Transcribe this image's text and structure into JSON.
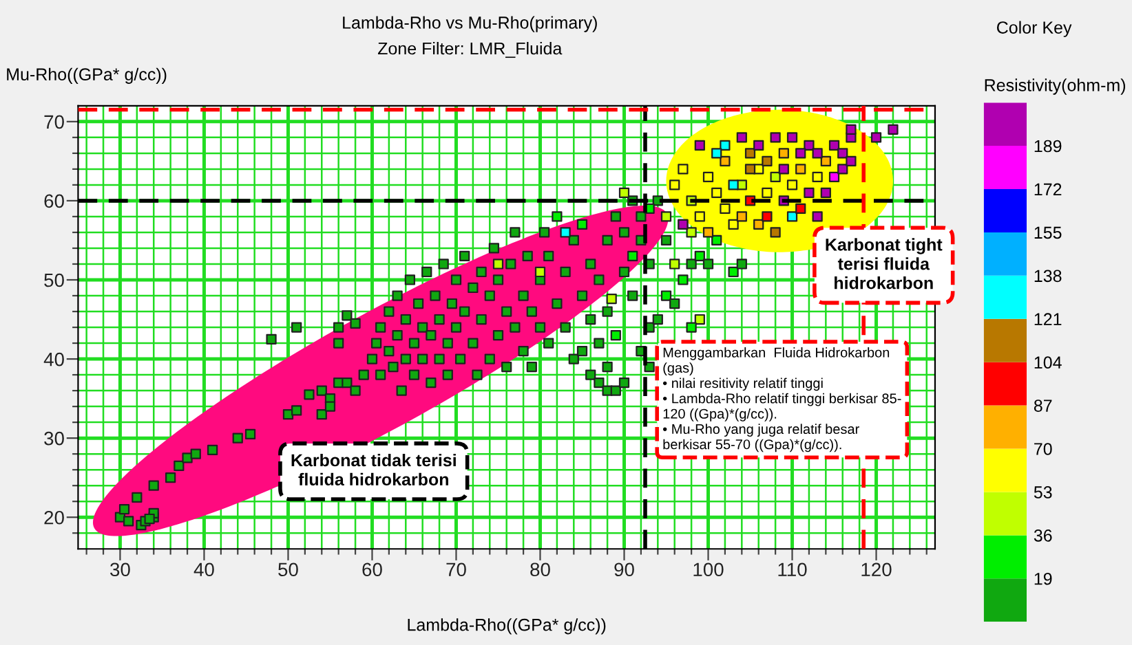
{
  "chart_data": {
    "type": "scatter",
    "title": "Lambda-Rho vs Mu-Rho(primary)",
    "subtitle": "Zone Filter: LMR_Fluida",
    "xlabel": "Lambda-Rho((GPa* g/cc))",
    "ylabel": "Mu-Rho((GPa* g/cc))",
    "legend_title": "Color Key",
    "clabel": "Resistivity(ohm-m)",
    "xlim": [
      25,
      127
    ],
    "ylim": [
      16,
      72
    ],
    "xticks": [
      {
        "value": 26,
        "label": null
      },
      {
        "value": 28,
        "label": null
      },
      30,
      {
        "value": 32,
        "label": null
      },
      {
        "value": 34,
        "label": null
      },
      {
        "value": 36,
        "label": null
      },
      {
        "value": 38,
        "label": null
      },
      40,
      {
        "value": 42,
        "label": null
      },
      {
        "value": 44,
        "label": null
      },
      {
        "value": 46,
        "label": null
      },
      {
        "value": 48,
        "label": null
      },
      50,
      {
        "value": 52,
        "label": null
      },
      {
        "value": 54,
        "label": null
      },
      {
        "value": 56,
        "label": null
      },
      {
        "value": 58,
        "label": null
      },
      60,
      {
        "value": 62,
        "label": null
      },
      {
        "value": 64,
        "label": null
      },
      {
        "value": 66,
        "label": null
      },
      {
        "value": 68,
        "label": null
      },
      70,
      {
        "value": 72,
        "label": null
      },
      {
        "value": 74,
        "label": null
      },
      {
        "value": 76,
        "label": null
      },
      {
        "value": 78,
        "label": null
      },
      80,
      {
        "value": 82,
        "label": null
      },
      {
        "value": 84,
        "label": null
      },
      {
        "value": 86,
        "label": null
      },
      {
        "value": 88,
        "label": null
      },
      90,
      {
        "value": 92,
        "label": null
      },
      {
        "value": 94,
        "label": null
      },
      {
        "value": 96,
        "label": null
      },
      {
        "value": 98,
        "label": null
      },
      100,
      {
        "value": 102,
        "label": null
      },
      {
        "value": 104,
        "label": null
      },
      {
        "value": 106,
        "label": null
      },
      {
        "value": 108,
        "label": null
      },
      110,
      {
        "value": 112,
        "label": null
      },
      {
        "value": 114,
        "label": null
      },
      {
        "value": 116,
        "label": null
      },
      {
        "value": 118,
        "label": null
      },
      120,
      {
        "value": 122,
        "label": null
      },
      {
        "value": 124,
        "label": null
      },
      {
        "value": 126,
        "label": null
      }
    ],
    "yticks": [
      {
        "value": 18,
        "label": null
      },
      20,
      {
        "value": 22,
        "label": null
      },
      {
        "value": 24,
        "label": null
      },
      {
        "value": 26,
        "label": null
      },
      {
        "value": 28,
        "label": null
      },
      30,
      {
        "value": 32,
        "label": null
      },
      {
        "value": 34,
        "label": null
      },
      {
        "value": 36,
        "label": null
      },
      {
        "value": 38,
        "label": null
      },
      40,
      {
        "value": 42,
        "label": null
      },
      {
        "value": 44,
        "label": null
      },
      {
        "value": 46,
        "label": null
      },
      {
        "value": 48,
        "label": null
      },
      50,
      {
        "value": 52,
        "label": null
      },
      {
        "value": 54,
        "label": null
      },
      {
        "value": 56,
        "label": null
      },
      {
        "value": 58,
        "label": null
      },
      60,
      {
        "value": 62,
        "label": null
      },
      {
        "value": 64,
        "label": null
      },
      {
        "value": 66,
        "label": null
      },
      {
        "value": 68,
        "label": null
      },
      70
    ],
    "clim": [
      2,
      206
    ],
    "cticks": [
      19,
      36,
      53,
      70,
      87,
      104,
      121,
      138,
      155,
      172,
      189
    ],
    "grid": true,
    "marker": "square",
    "ref_lines": [
      {
        "axis": "y",
        "value": 60,
        "color": "#000000",
        "line_style": "dashed"
      },
      {
        "axis": "x",
        "value": 92.5,
        "color": "#000000",
        "line_style": "dashed"
      },
      {
        "axis": "y",
        "value": 71.5,
        "color": "#ff0000",
        "line_style": "dashed"
      },
      {
        "axis": "x",
        "value": 118.5,
        "color": "#ff0000",
        "line_style": "dashed"
      }
    ],
    "annotations": [
      "Karbonat tidak terisi\nfluida hidrokarbon",
      "Karbonat tight\nterisi fluida\nhidrokarbon",
      "Menggambarkan  Fluida Hidrokarbon\n(gas)\n• nilai resitivity relatif tinggi\n• Lambda-Rho relatif tinggi berkisar 85-\n120 ((Gpa)*(g/cc)).\n• Mu-Rho yang juga relatif besar\nberkisar 55-70 ((Gpa)*(g/cc))."
    ],
    "series": [
      {
        "x": [
          30,
          30.5,
          31,
          32.5,
          33,
          34,
          34,
          33.5,
          32,
          34,
          36,
          37,
          38,
          39,
          41,
          44,
          45.5,
          48,
          50,
          51,
          51,
          52.5,
          54,
          55,
          54,
          55,
          56,
          57,
          56,
          57,
          58,
          56,
          58,
          59,
          60,
          60.5,
          61,
          61,
          62,
          62,
          62.5,
          63,
          63,
          63.5,
          64,
          64,
          64.5,
          65,
          65,
          65.5,
          66,
          66,
          66.5,
          67,
          67,
          67.5,
          68,
          68,
          68.5,
          69,
          69,
          69.5,
          70,
          70,
          70.5,
          71,
          71,
          72,
          72,
          72.5,
          73,
          73,
          74,
          74,
          74.5,
          75,
          75,
          76,
          76,
          76.5,
          77,
          77,
          78,
          78,
          78.5,
          79,
          79,
          80,
          80,
          80.5,
          81,
          81,
          82,
          82,
          83,
          83,
          84,
          84,
          85,
          85,
          86,
          86,
          87,
          87,
          88,
          88,
          89,
          89,
          90,
          90,
          91,
          91,
          92,
          92,
          86,
          87,
          88,
          89,
          90,
          93,
          94,
          95,
          96,
          97,
          98,
          99,
          100,
          101,
          103,
          104,
          93,
          95,
          88,
          85,
          93,
          92,
          99,
          98,
          96,
          97,
          95,
          94,
          93,
          91,
          90,
          80,
          75,
          83,
          88.5,
          96,
          97,
          98,
          99,
          100,
          100,
          101,
          102,
          102,
          103,
          104,
          104,
          105,
          105,
          106,
          106,
          107,
          107,
          108,
          108,
          109,
          109,
          110,
          110,
          111,
          111,
          112,
          112,
          113,
          113,
          114,
          114,
          115,
          115,
          116,
          116,
          117,
          117,
          110,
          108,
          106,
          104,
          102,
          101,
          99,
          111,
          113,
          109,
          107,
          105,
          103,
          98,
          97,
          120,
          122,
          117
        ],
        "values": [
          20,
          21,
          19.5,
          19,
          19.5,
          20,
          20.5,
          19.8,
          22.5,
          24,
          25,
          26.5,
          27.5,
          28,
          28.5,
          30,
          30.5,
          42.5,
          33,
          33.5,
          44,
          35.5,
          36,
          35,
          33,
          34,
          37,
          37,
          44,
          45.5,
          44.5,
          42,
          36,
          38,
          40,
          42,
          38,
          44,
          41,
          46,
          39,
          43,
          48,
          36,
          40,
          45,
          50,
          38,
          42,
          47,
          40,
          44,
          51,
          37,
          43,
          48,
          40,
          45,
          52,
          38,
          42,
          47,
          44,
          50,
          40,
          53,
          46,
          42,
          49,
          38,
          51,
          45,
          40,
          48,
          54,
          43,
          50,
          39,
          46,
          52,
          44,
          56,
          41,
          48,
          53,
          46,
          39,
          50,
          44,
          56,
          42,
          53,
          47,
          58,
          44,
          51,
          55,
          40,
          48,
          57,
          45,
          52,
          42,
          50,
          55,
          46,
          58,
          43,
          51,
          56,
          48,
          53,
          58,
          55,
          38,
          37,
          36,
          36,
          37,
          44,
          45,
          48,
          47,
          50,
          52,
          53,
          52,
          55,
          51,
          52,
          52,
          55,
          39,
          41,
          39,
          41,
          45,
          44,
          52,
          57,
          58,
          60,
          59,
          60,
          61,
          51,
          52,
          56,
          47.6,
          62,
          64,
          60,
          58,
          63,
          56,
          61,
          59,
          65,
          57,
          62,
          58,
          60,
          66,
          64,
          57,
          61,
          58,
          63,
          56,
          60,
          66,
          62,
          58,
          64,
          59,
          61,
          67,
          63,
          58,
          65,
          61,
          67,
          63,
          66,
          64,
          68,
          65,
          68,
          68,
          67,
          68,
          67,
          66,
          67,
          66,
          66,
          64,
          65,
          64,
          62,
          56,
          57,
          68,
          69,
          69
        ],
        "cvalues": [
          10,
          10,
          10,
          10,
          10,
          10,
          10,
          10,
          10,
          10,
          10,
          10,
          10,
          10,
          10,
          10,
          10,
          10,
          10,
          10,
          10,
          10,
          10,
          10,
          10,
          10,
          10,
          10,
          10,
          10,
          10,
          10,
          10,
          10,
          10,
          10,
          10,
          10,
          10,
          10,
          10,
          10,
          10,
          10,
          10,
          10,
          10,
          10,
          10,
          10,
          10,
          10,
          10,
          10,
          10,
          10,
          10,
          10,
          10,
          10,
          10,
          10,
          10,
          10,
          10,
          10,
          10,
          10,
          10,
          10,
          10,
          10,
          10,
          10,
          10,
          10,
          10,
          10,
          10,
          10,
          10,
          10,
          10,
          10,
          10,
          10,
          10,
          10,
          10,
          10,
          10,
          10,
          10,
          28,
          10,
          10,
          10,
          10,
          10,
          28,
          10,
          10,
          10,
          10,
          10,
          10,
          10,
          28,
          10,
          10,
          10,
          28,
          10,
          10,
          10,
          10,
          10,
          10,
          10,
          10,
          10,
          28,
          10,
          28,
          10,
          28,
          10,
          28,
          28,
          10,
          10,
          10,
          10,
          10,
          10,
          10,
          45,
          28,
          45,
          28,
          45,
          10,
          28,
          10,
          45,
          45,
          45,
          130,
          45,
          60,
          60,
          45,
          60,
          60,
          78,
          60,
          60,
          78,
          60,
          45,
          78,
          95,
          112,
          60,
          78,
          60,
          95,
          45,
          112,
          197,
          78,
          60,
          130,
          78,
          95,
          197,
          197,
          60,
          197,
          78,
          197,
          197,
          180,
          197,
          197,
          197,
          197,
          197,
          197,
          197,
          197,
          130,
          130,
          197,
          197,
          197,
          197,
          112,
          112,
          130,
          45,
          197,
          197,
          197,
          197
        ]
      }
    ]
  }
}
